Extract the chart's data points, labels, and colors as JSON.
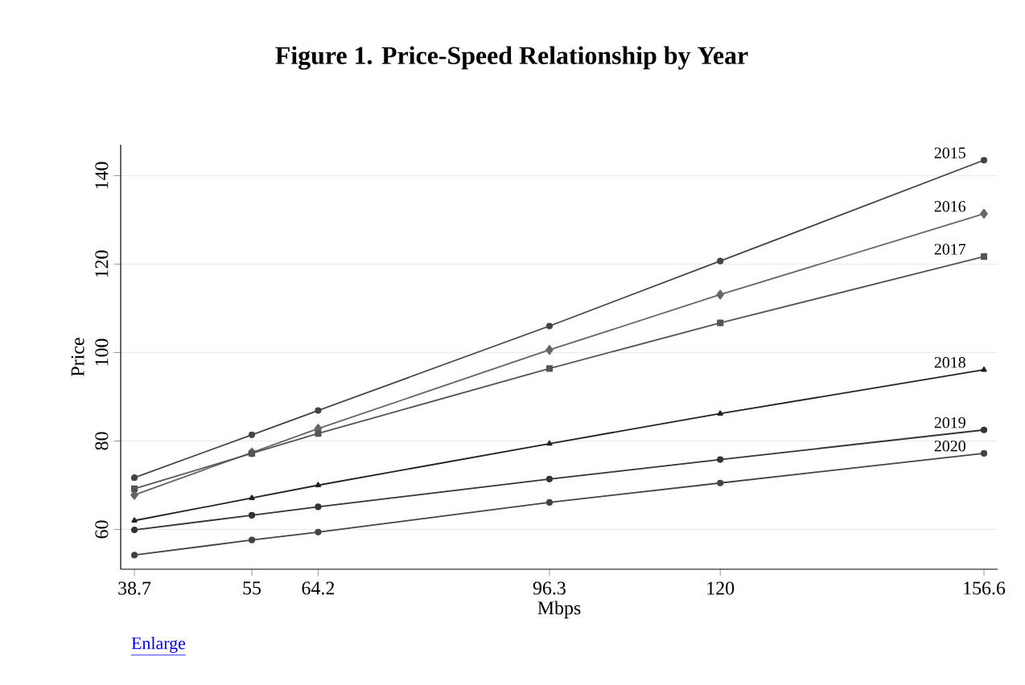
{
  "chart_data": {
    "type": "line",
    "title": "Figure 1.  Price-Speed Relationship by Year",
    "xlabel": "Mbps",
    "ylabel": "Price",
    "x": [
      38.7,
      55,
      64.2,
      96.3,
      120,
      156.6
    ],
    "xlim": [
      36.8,
      158.5
    ],
    "xticks": [
      38.7,
      55,
      64.2,
      96.3,
      120,
      156.6
    ],
    "ylim": [
      51,
      147
    ],
    "yticks": [
      60,
      80,
      100,
      120,
      140
    ],
    "grid": "y",
    "annotations": [
      "Enlarge"
    ],
    "series": [
      {
        "name": "2015",
        "color": "#444444",
        "marker": "circle",
        "values": [
          71.7,
          81.4,
          86.9,
          106.0,
          120.7,
          143.5
        ]
      },
      {
        "name": "2016",
        "color": "#666666",
        "marker": "diamond",
        "values": [
          67.8,
          77.4,
          82.8,
          100.6,
          113.1,
          131.4
        ]
      },
      {
        "name": "2017",
        "color": "#555555",
        "marker": "square",
        "values": [
          69.2,
          77.2,
          81.7,
          96.4,
          106.7,
          121.7
        ]
      },
      {
        "name": "2018",
        "color": "#222222",
        "marker": "triangle",
        "values": [
          62.0,
          67.1,
          70.0,
          79.4,
          86.2,
          96.1
        ]
      },
      {
        "name": "2019",
        "color": "#333333",
        "marker": "circle",
        "values": [
          59.9,
          63.2,
          65.1,
          71.4,
          75.8,
          82.5
        ]
      },
      {
        "name": "2020",
        "color": "#444444",
        "marker": "circle",
        "values": [
          54.2,
          57.6,
          59.4,
          66.1,
          70.5,
          77.2
        ]
      }
    ]
  }
}
